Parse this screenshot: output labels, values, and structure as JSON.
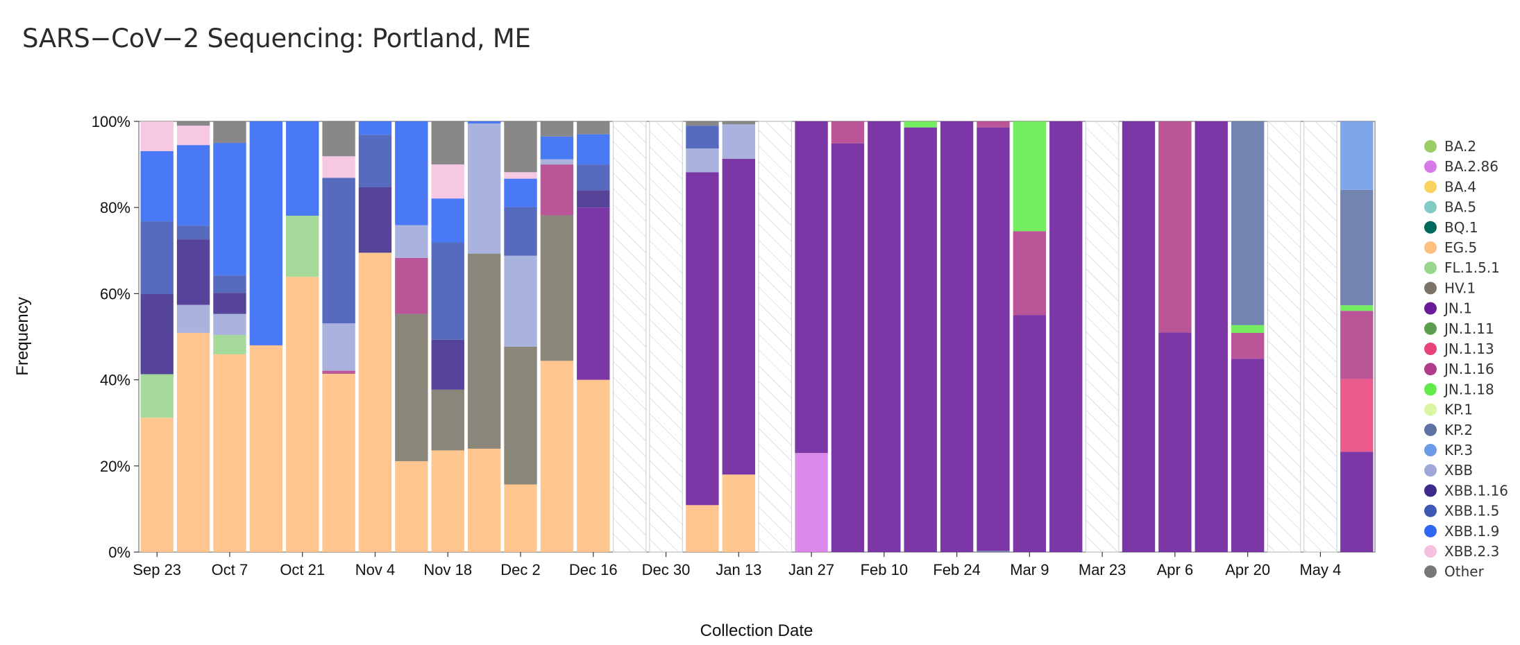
{
  "title": "SARS−CoV−2 Sequencing: Portland, ME",
  "chart_data": {
    "type": "bar",
    "stacked": true,
    "xlabel": "Collection Date",
    "ylabel": "Frequency",
    "ylim": [
      0,
      100
    ],
    "y_ticks": [
      "0%",
      "20%",
      "40%",
      "60%",
      "80%",
      "100%"
    ],
    "x_tick_labels": [
      "Sep 23",
      "Oct 7",
      "Oct 21",
      "Nov 4",
      "Nov 18",
      "Dec 2",
      "Dec 16",
      "Dec 30",
      "Jan 13",
      "Jan 27",
      "Feb 10",
      "Feb 24",
      "Mar 9",
      "Mar 23",
      "Apr 6",
      "Apr 20",
      "May 4"
    ],
    "x_tick_week_index": [
      0,
      2,
      4,
      6,
      8,
      10,
      12,
      14,
      16,
      18,
      20,
      22,
      24,
      26,
      28,
      30,
      32
    ],
    "legend_position": "right",
    "no_data_pattern": "diagonal-hatch",
    "lineages": [
      {
        "name": "BA.2",
        "color": "#9ccc65"
      },
      {
        "name": "BA.2.86",
        "color": "#d67ae8"
      },
      {
        "name": "BA.4",
        "color": "#f9d35e"
      },
      {
        "name": "BA.5",
        "color": "#80cbc4"
      },
      {
        "name": "BQ.1",
        "color": "#00695c"
      },
      {
        "name": "EG.5",
        "color": "#ffbf80"
      },
      {
        "name": "FL.1.5.1",
        "color": "#98d58d"
      },
      {
        "name": "HV.1",
        "color": "#7a7566"
      },
      {
        "name": "JN.1",
        "color": "#6a1b9a"
      },
      {
        "name": "JN.1.11",
        "color": "#5b9e4f"
      },
      {
        "name": "JN.1.13",
        "color": "#e8437c"
      },
      {
        "name": "JN.1.16",
        "color": "#b03d8a"
      },
      {
        "name": "JN.1.18",
        "color": "#62ea4a"
      },
      {
        "name": "KP.1",
        "color": "#d8f7a0"
      },
      {
        "name": "KP.2",
        "color": "#5e73a4"
      },
      {
        "name": "KP.3",
        "color": "#6c9be8"
      },
      {
        "name": "XBB",
        "color": "#9ea8d8"
      },
      {
        "name": "XBB.1.16",
        "color": "#3e2a8c"
      },
      {
        "name": "XBB.1.5",
        "color": "#3f57b5"
      },
      {
        "name": "XBB.1.9",
        "color": "#3067f2"
      },
      {
        "name": "XBB.2.3",
        "color": "#f6c0de"
      },
      {
        "name": "Other",
        "color": "#777777"
      }
    ],
    "weeks": [
      {
        "segments": [
          {
            "name": "EG.5",
            "value": 31.2
          },
          {
            "name": "FL.1.5.1",
            "value": 10.1
          },
          {
            "name": "XBB.1.16",
            "value": 18.6
          },
          {
            "name": "XBB.1.5",
            "value": 16.9
          },
          {
            "name": "XBB.1.9",
            "value": 16.3
          },
          {
            "name": "XBB.2.3",
            "value": 6.9
          }
        ]
      },
      {
        "segments": [
          {
            "name": "EG.5",
            "value": 50.9
          },
          {
            "name": "XBB",
            "value": 6.5
          },
          {
            "name": "XBB.1.16",
            "value": 15.2
          },
          {
            "name": "XBB.1.5",
            "value": 3.2
          },
          {
            "name": "XBB.1.9",
            "value": 18.7
          },
          {
            "name": "XBB.2.3",
            "value": 4.5
          },
          {
            "name": "Other",
            "value": 1.0
          }
        ]
      },
      {
        "segments": [
          {
            "name": "EG.5",
            "value": 45.9
          },
          {
            "name": "FL.1.5.1",
            "value": 4.5
          },
          {
            "name": "XBB",
            "value": 4.9
          },
          {
            "name": "XBB.1.16",
            "value": 4.9
          },
          {
            "name": "XBB.1.5",
            "value": 4.0
          },
          {
            "name": "XBB.1.9",
            "value": 30.8
          },
          {
            "name": "Other",
            "value": 5.0
          }
        ]
      },
      {
        "segments": [
          {
            "name": "EG.5",
            "value": 48.0
          },
          {
            "name": "XBB.1.9",
            "value": 52.0
          }
        ]
      },
      {
        "segments": [
          {
            "name": "EG.5",
            "value": 63.9
          },
          {
            "name": "FL.1.5.1",
            "value": 14.2
          },
          {
            "name": "XBB.1.9",
            "value": 21.9
          }
        ]
      },
      {
        "segments": [
          {
            "name": "EG.5",
            "value": 41.4
          },
          {
            "name": "JN.1.16",
            "value": 0.7
          },
          {
            "name": "XBB",
            "value": 11.0
          },
          {
            "name": "XBB.1.5",
            "value": 33.8
          },
          {
            "name": "XBB.2.3",
            "value": 5.0
          },
          {
            "name": "Other",
            "value": 8.1
          }
        ]
      },
      {
        "segments": [
          {
            "name": "EG.5",
            "value": 69.5
          },
          {
            "name": "XBB.1.16",
            "value": 15.2
          },
          {
            "name": "XBB.1.5",
            "value": 12.2
          },
          {
            "name": "XBB.1.9",
            "value": 3.1
          }
        ]
      },
      {
        "segments": [
          {
            "name": "EG.5",
            "value": 21.1
          },
          {
            "name": "HV.1",
            "value": 34.2
          },
          {
            "name": "JN.1.16",
            "value": 13.0
          },
          {
            "name": "XBB",
            "value": 7.6
          },
          {
            "name": "XBB.1.9",
            "value": 24.1
          }
        ]
      },
      {
        "segments": [
          {
            "name": "EG.5",
            "value": 23.6
          },
          {
            "name": "HV.1",
            "value": 14.1
          },
          {
            "name": "XBB.1.16",
            "value": 11.6
          },
          {
            "name": "XBB.1.5",
            "value": 22.6
          },
          {
            "name": "XBB.1.9",
            "value": 10.2
          },
          {
            "name": "XBB.2.3",
            "value": 7.9
          },
          {
            "name": "Other",
            "value": 10.0
          }
        ]
      },
      {
        "segments": [
          {
            "name": "EG.5",
            "value": 24.0
          },
          {
            "name": "HV.1",
            "value": 45.3
          },
          {
            "name": "XBB",
            "value": 30.2
          },
          {
            "name": "XBB.1.9",
            "value": 0.5
          }
        ]
      },
      {
        "segments": [
          {
            "name": "EG.5",
            "value": 15.7
          },
          {
            "name": "HV.1",
            "value": 32.0
          },
          {
            "name": "XBB",
            "value": 21.1
          },
          {
            "name": "XBB.1.5",
            "value": 11.3
          },
          {
            "name": "XBB.1.9",
            "value": 6.6
          },
          {
            "name": "XBB.2.3",
            "value": 1.5
          },
          {
            "name": "Other",
            "value": 11.8
          }
        ]
      },
      {
        "segments": [
          {
            "name": "EG.5",
            "value": 44.4
          },
          {
            "name": "HV.1",
            "value": 33.8
          },
          {
            "name": "JN.1.16",
            "value": 11.8
          },
          {
            "name": "XBB",
            "value": 1.2
          },
          {
            "name": "XBB.1.9",
            "value": 5.3
          },
          {
            "name": "Other",
            "value": 3.5
          }
        ]
      },
      {
        "segments": [
          {
            "name": "EG.5",
            "value": 40.0
          },
          {
            "name": "JN.1",
            "value": 40.0
          },
          {
            "name": "XBB.1.16",
            "value": 4.0
          },
          {
            "name": "XBB.1.5",
            "value": 6.0
          },
          {
            "name": "XBB.1.9",
            "value": 7.0
          },
          {
            "name": "Other",
            "value": 3.0
          }
        ]
      },
      {
        "no_data": true,
        "segments": []
      },
      {
        "no_data": true,
        "segments": []
      },
      {
        "segments": [
          {
            "name": "EG.5",
            "value": 10.9
          },
          {
            "name": "JN.1",
            "value": 77.3
          },
          {
            "name": "XBB",
            "value": 5.5
          },
          {
            "name": "XBB.1.5",
            "value": 5.3
          },
          {
            "name": "Other",
            "value": 1.0
          }
        ]
      },
      {
        "segments": [
          {
            "name": "EG.5",
            "value": 18.0
          },
          {
            "name": "JN.1",
            "value": 73.3
          },
          {
            "name": "XBB",
            "value": 8.0
          },
          {
            "name": "Other",
            "value": 0.7
          }
        ]
      },
      {
        "no_data": true,
        "segments": []
      },
      {
        "segments": [
          {
            "name": "BA.2.86",
            "value": 23.0
          },
          {
            "name": "JN.1",
            "value": 77.0
          }
        ]
      },
      {
        "segments": [
          {
            "name": "JN.1",
            "value": 94.9
          },
          {
            "name": "JN.1.16",
            "value": 5.1
          }
        ]
      },
      {
        "segments": [
          {
            "name": "JN.1",
            "value": 100.0
          }
        ]
      },
      {
        "segments": [
          {
            "name": "JN.1",
            "value": 98.6
          },
          {
            "name": "JN.1.18",
            "value": 1.4
          }
        ]
      },
      {
        "segments": [
          {
            "name": "JN.1",
            "value": 100.0
          }
        ]
      },
      {
        "segments": [
          {
            "name": "KP.2",
            "value": 0.3
          },
          {
            "name": "JN.1",
            "value": 98.3
          },
          {
            "name": "JN.1.16",
            "value": 1.4
          }
        ]
      },
      {
        "segments": [
          {
            "name": "JN.1",
            "value": 55.0
          },
          {
            "name": "JN.1.16",
            "value": 19.5
          },
          {
            "name": "JN.1.18",
            "value": 25.5
          }
        ]
      },
      {
        "segments": [
          {
            "name": "JN.1",
            "value": 100.0
          }
        ]
      },
      {
        "no_data": true,
        "segments": []
      },
      {
        "segments": [
          {
            "name": "JN.1",
            "value": 100.0
          }
        ]
      },
      {
        "segments": [
          {
            "name": "JN.1",
            "value": 51.0
          },
          {
            "name": "JN.1.16",
            "value": 49.0
          }
        ]
      },
      {
        "segments": [
          {
            "name": "JN.1",
            "value": 100.0
          }
        ]
      },
      {
        "segments": [
          {
            "name": "JN.1",
            "value": 44.9
          },
          {
            "name": "JN.1.16",
            "value": 6.0
          },
          {
            "name": "JN.1.18",
            "value": 1.8
          },
          {
            "name": "KP.2",
            "value": 47.3
          }
        ]
      },
      {
        "no_data": true,
        "segments": []
      },
      {
        "no_data": true,
        "segments": []
      },
      {
        "segments": [
          {
            "name": "JN.1",
            "value": 23.3
          },
          {
            "name": "JN.1.13",
            "value": 16.9
          },
          {
            "name": "JN.1.16",
            "value": 15.8
          },
          {
            "name": "JN.1.18",
            "value": 1.3
          },
          {
            "name": "KP.2",
            "value": 26.8
          },
          {
            "name": "KP.3",
            "value": 15.9
          }
        ]
      }
    ]
  }
}
